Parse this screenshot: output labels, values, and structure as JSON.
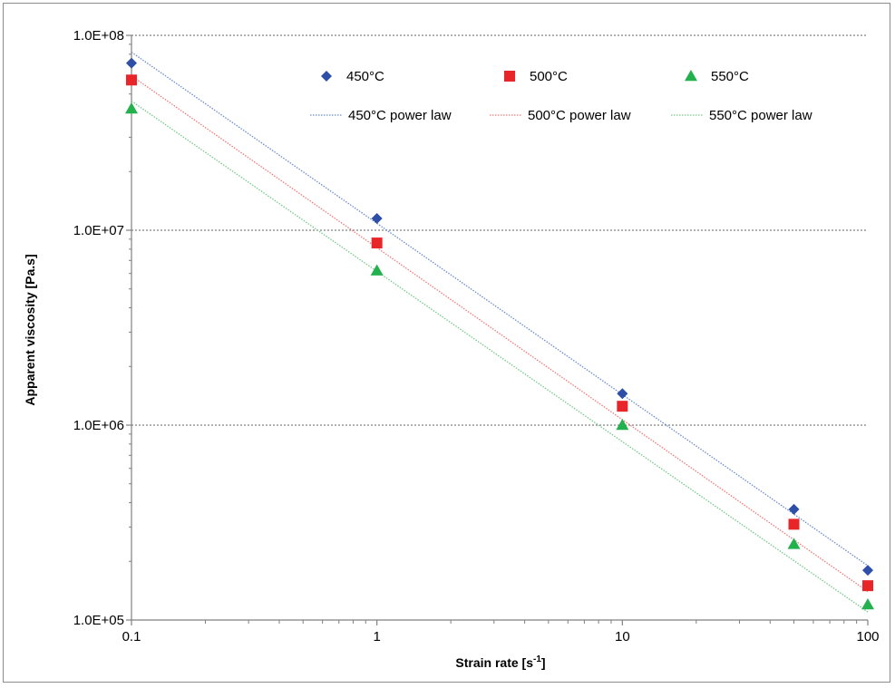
{
  "chart_data": {
    "type": "scatter",
    "x_scale": "log",
    "y_scale": "log",
    "xlim": [
      0.1,
      100
    ],
    "ylim": [
      100000,
      100000000
    ],
    "xlabel": "Strain rate [s",
    "xlabel_sup": "-1",
    "xlabel_end": "]",
    "ylabel": "Apparent viscosity [Pa.s]",
    "x_ticks": [
      {
        "value": 0.1,
        "label": "0.1"
      },
      {
        "value": 1,
        "label": "1"
      },
      {
        "value": 10,
        "label": "10"
      },
      {
        "value": 100,
        "label": "100"
      }
    ],
    "y_ticks": [
      {
        "value": 100000,
        "label": "1.0E+05"
      },
      {
        "value": 1000000,
        "label": "1.0E+06"
      },
      {
        "value": 10000000,
        "label": "1.0E+07"
      },
      {
        "value": 100000000,
        "label": "1.0E+08"
      }
    ],
    "grid": "horizontal major, dotted",
    "legend_position": "top, two rows",
    "series": [
      {
        "name": "450°C",
        "marker": "diamond",
        "color": "#2e4fa8",
        "x": [
          0.1,
          1,
          10,
          50,
          100
        ],
        "y": [
          72000000,
          11500000,
          1450000,
          370000,
          180000
        ]
      },
      {
        "name": "500°C",
        "marker": "square",
        "color": "#e8262a",
        "x": [
          0.1,
          1,
          10,
          50,
          100
        ],
        "y": [
          59000000,
          8600000,
          1250000,
          310000,
          150000
        ]
      },
      {
        "name": "550°C",
        "marker": "triangle",
        "color": "#22b14c",
        "x": [
          0.1,
          1,
          10,
          50,
          100
        ],
        "y": [
          42000000,
          6200000,
          1000000,
          245000,
          120000
        ]
      }
    ],
    "trendlines": [
      {
        "name": "450°C power law",
        "color": "#6a8ccf",
        "x": [
          0.1,
          100
        ],
        "y": [
          82000000,
          190000
        ]
      },
      {
        "name": "500°C power law",
        "color": "#ee7a78",
        "x": [
          0.1,
          100
        ],
        "y": [
          62000000,
          140000
        ]
      },
      {
        "name": "550°C power law",
        "color": "#74c98a",
        "x": [
          0.1,
          100
        ],
        "y": [
          46000000,
          110000
        ]
      }
    ]
  }
}
